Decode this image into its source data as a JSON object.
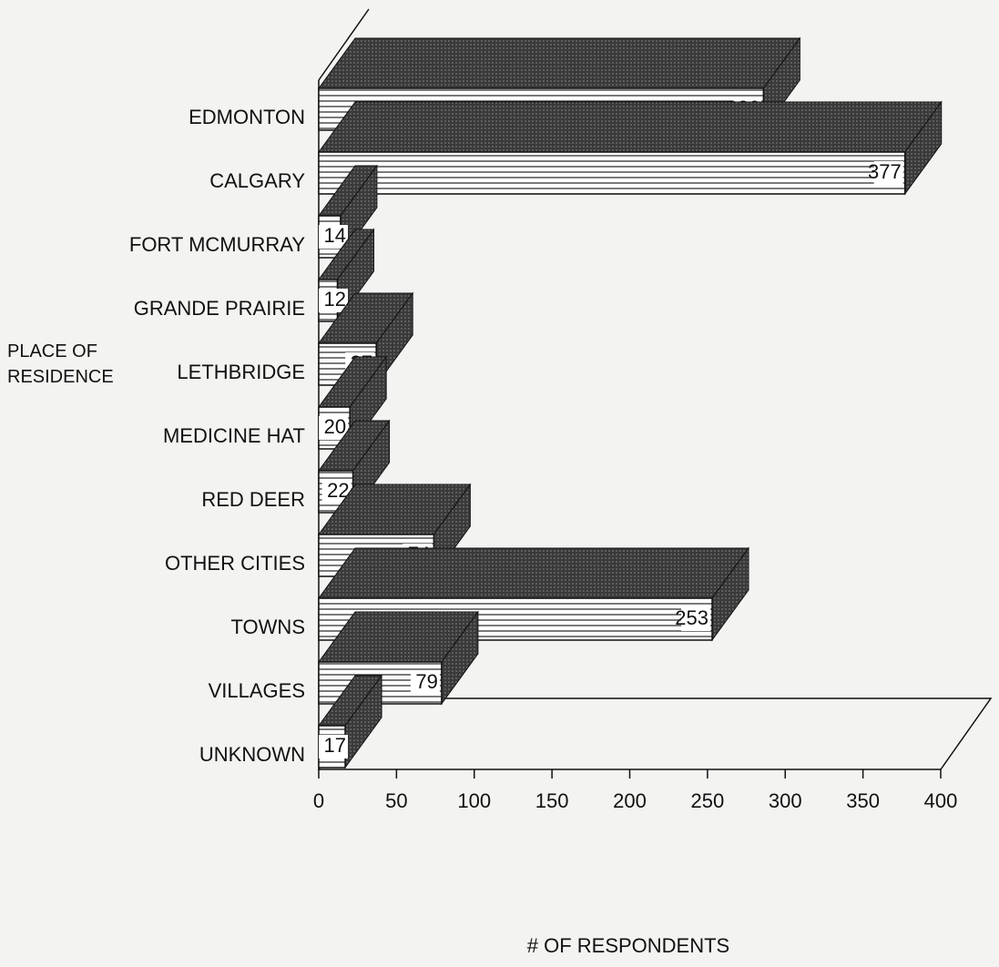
{
  "chart_data": {
    "type": "bar",
    "orientation": "horizontal",
    "categories": [
      "EDMONTON",
      "CALGARY",
      "FORT MCMURRAY",
      "GRANDE PRAIRIE",
      "LETHBRIDGE",
      "MEDICINE HAT",
      "RED DEER",
      "OTHER CITIES",
      "TOWNS",
      "VILLAGES",
      "UNKNOWN"
    ],
    "values": [
      286,
      377,
      14,
      12,
      37,
      20,
      22,
      74,
      253,
      79,
      17
    ],
    "xlim": [
      0,
      400
    ],
    "xticks": [
      0,
      50,
      100,
      150,
      200,
      250,
      300,
      350,
      400
    ],
    "xlabel": "# OF RESPONDENTS",
    "ylabel": "PLACE OF RESIDENCE"
  }
}
